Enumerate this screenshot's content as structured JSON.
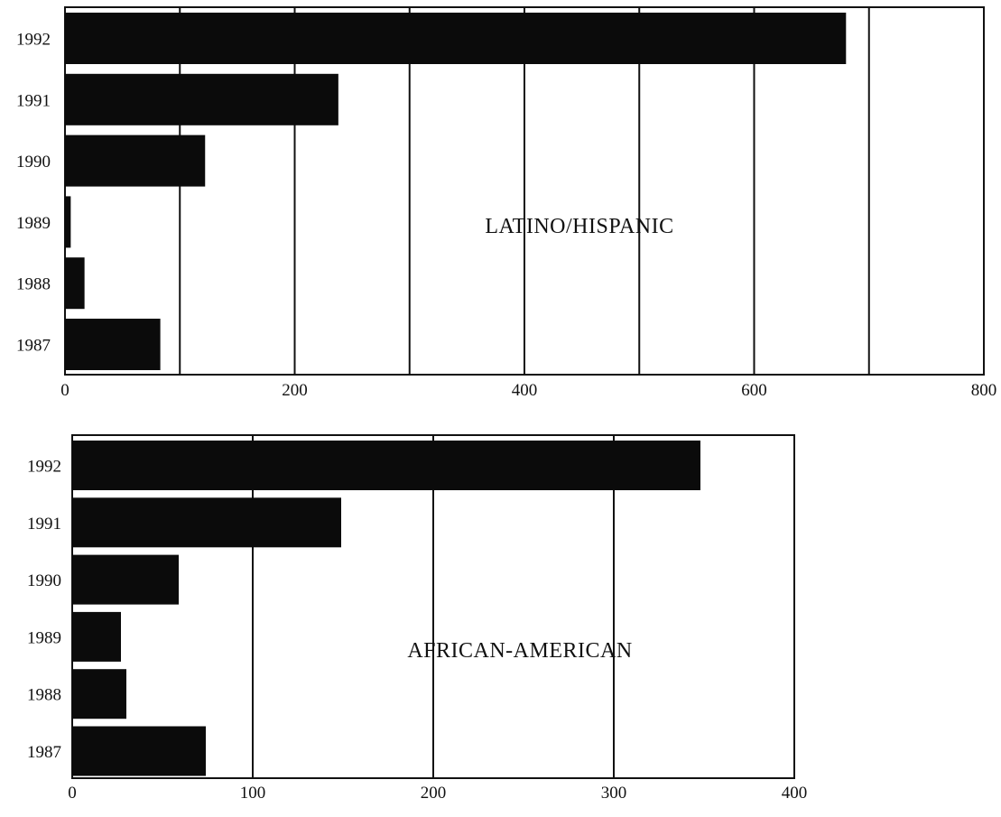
{
  "chart_data": [
    {
      "type": "bar",
      "orientation": "horizontal",
      "categories": [
        "1992",
        "1991",
        "1990",
        "1989",
        "1988",
        "1987"
      ],
      "values": [
        680,
        238,
        122,
        5,
        17,
        83
      ],
      "xlim": [
        0,
        800
      ],
      "xticks": [
        "0",
        "200",
        "400",
        "600",
        "800"
      ],
      "gridlines_at": [
        100,
        200,
        300,
        400,
        500,
        600,
        700
      ],
      "annotation": "LATINO/HISPANIC",
      "grid": true
    },
    {
      "type": "bar",
      "orientation": "horizontal",
      "categories": [
        "1992",
        "1991",
        "1990",
        "1989",
        "1988",
        "1987"
      ],
      "values": [
        348,
        149,
        59,
        27,
        30,
        74
      ],
      "xlim": [
        0,
        400
      ],
      "xticks": [
        "0",
        "100",
        "200",
        "300",
        "400"
      ],
      "gridlines_at": [
        100,
        200,
        300
      ],
      "annotation": "AFRICAN-AMERICAN",
      "grid": true
    }
  ]
}
